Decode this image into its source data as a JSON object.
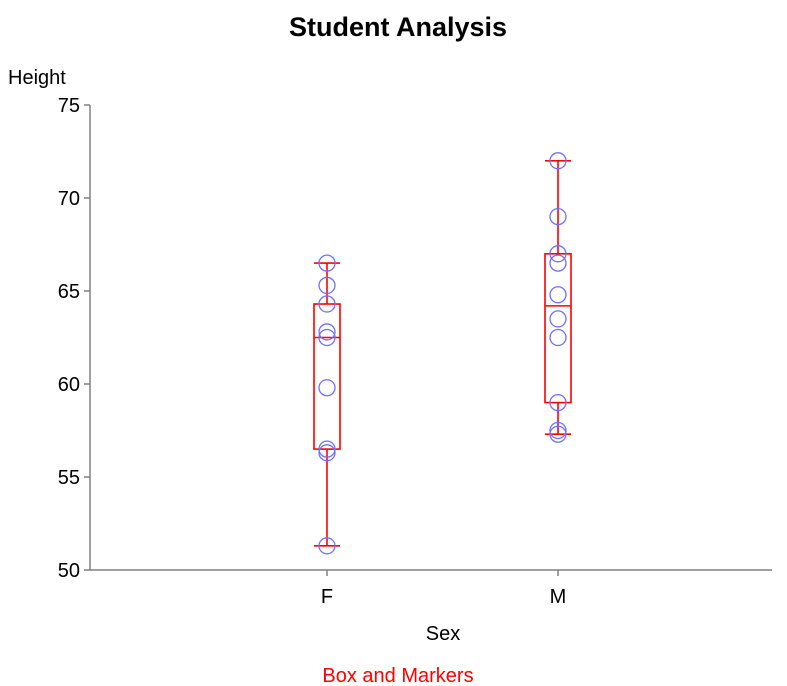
{
  "chart_data": {
    "type": "box",
    "title": "Student Analysis",
    "ylabel": "Height",
    "xlabel": "Sex",
    "footnote": "Box and Markers",
    "ylim": [
      50,
      75
    ],
    "yticks": [
      50,
      55,
      60,
      65,
      70,
      75
    ],
    "categories": [
      "F",
      "M"
    ],
    "boxes": [
      {
        "category": "F",
        "min": 51.3,
        "q1": 56.5,
        "median": 62.5,
        "q3": 64.3,
        "max": 66.5
      },
      {
        "category": "M",
        "min": 57.3,
        "q1": 59.0,
        "median": 64.2,
        "q3": 67.0,
        "max": 72.0
      }
    ],
    "points": [
      {
        "category": "F",
        "values": [
          51.3,
          56.3,
          56.5,
          59.8,
          62.5,
          62.8,
          64.3,
          65.3,
          66.5
        ]
      },
      {
        "category": "M",
        "values": [
          57.3,
          57.5,
          59.0,
          62.5,
          63.5,
          64.8,
          66.5,
          67.0,
          69.0,
          72.0
        ]
      }
    ],
    "colors": {
      "box": "#ff0000",
      "marker": "#7070ff",
      "axis": "#808080",
      "footnote": "#ff0000"
    },
    "grid": false
  }
}
